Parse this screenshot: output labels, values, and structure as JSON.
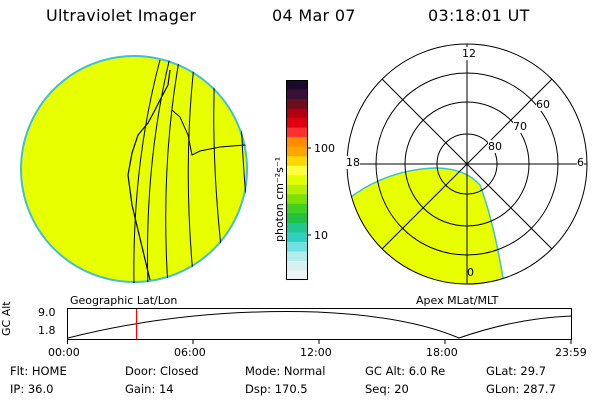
{
  "header": {
    "instrument": "Ultraviolet Imager",
    "date": "04 Mar 07",
    "time": "03:18:01 UT"
  },
  "colorbar": {
    "unit_label": "photon cm⁻²s⁻¹",
    "ticks": [
      "100",
      "10"
    ],
    "colors": [
      "#1a0a2a",
      "#3a0f3a",
      "#6a0f20",
      "#b00010",
      "#e00010",
      "#ff3030",
      "#ff8c00",
      "#ffa500",
      "#ffd700",
      "#ffff40",
      "#e6ff00",
      "#b4f000",
      "#7ee000",
      "#40d020",
      "#20c040",
      "#20c890",
      "#30d0c0",
      "#70e0e0",
      "#b0ecec",
      "#d8f0f0",
      "#eef4f4"
    ]
  },
  "left_panel": {
    "caption": "Geographic Lat/Lon",
    "fill_color": "#e8ff00",
    "edge_color": "#40c0d0"
  },
  "right_panel": {
    "caption": "Apex MLat/MLT",
    "mlt_labels": {
      "top": "12",
      "left": "18",
      "right": "6",
      "bottom": "0"
    },
    "lat_labels": [
      "60",
      "70",
      "80"
    ],
    "fill_color": "#e8ff00"
  },
  "altitude_plot": {
    "axis_label": "GC Alt",
    "y_ticks": [
      "9.0",
      "1.8"
    ],
    "x_ticks": [
      "00:00",
      "06:00",
      "12:00",
      "18:00",
      "23:59"
    ],
    "marker_time_fraction": 0.137,
    "marker_color": "#ff0000"
  },
  "info": {
    "row1": [
      {
        "key": "Flt:",
        "value": "HOME"
      },
      {
        "key": "Door:",
        "value": "Closed"
      },
      {
        "key": "Mode:",
        "value": "Normal"
      },
      {
        "key": "GC Alt:",
        "value": "6.0 Re"
      },
      {
        "key": "GLat:",
        "value": "29.7"
      }
    ],
    "row2": [
      {
        "key": "IP:",
        "value": "36.0"
      },
      {
        "key": "Gain:",
        "value": "14"
      },
      {
        "key": "Dsp:",
        "value": "170.5"
      },
      {
        "key": "Seq:",
        "value": "20"
      },
      {
        "key": "GLon:",
        "value": "287.7"
      }
    ]
  }
}
